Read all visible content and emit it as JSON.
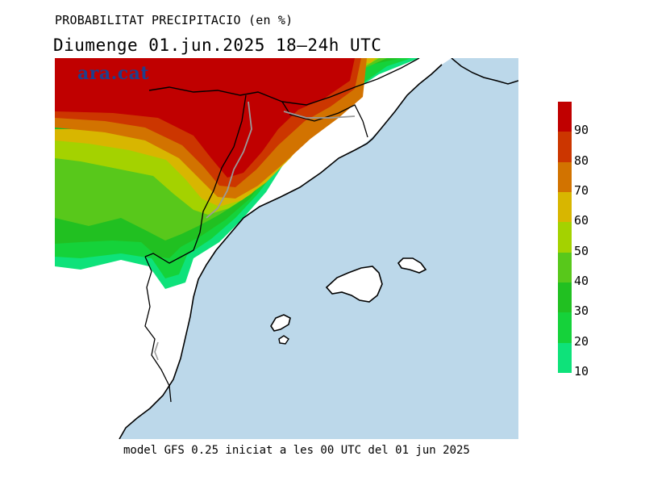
{
  "title": {
    "line1": "PROBABILITAT PRECIPITACIO (en %)",
    "line2": "Diumenge  01.jun.2025  18—24h  UTC"
  },
  "brand": "ara.cat",
  "footer": "model GFS 0.25 iniciat a les 00 UTC del 01 jun 2025",
  "legend": {
    "levels": [
      {
        "label": "90",
        "color": "#c00000"
      },
      {
        "label": "80",
        "color": "#cc3600"
      },
      {
        "label": "70",
        "color": "#d27300"
      },
      {
        "label": "60",
        "color": "#d8b600"
      },
      {
        "label": "50",
        "color": "#a4d200"
      },
      {
        "label": "40",
        "color": "#58c81b"
      },
      {
        "label": "30",
        "color": "#21c021"
      },
      {
        "label": "20",
        "color": "#15d23a"
      },
      {
        "label": "10",
        "color": "#0ee27a"
      }
    ]
  },
  "colors": {
    "sea": "#bcd8ea",
    "land": "#ffffff",
    "coast": "#000000",
    "river": "#9a9a9a"
  }
}
